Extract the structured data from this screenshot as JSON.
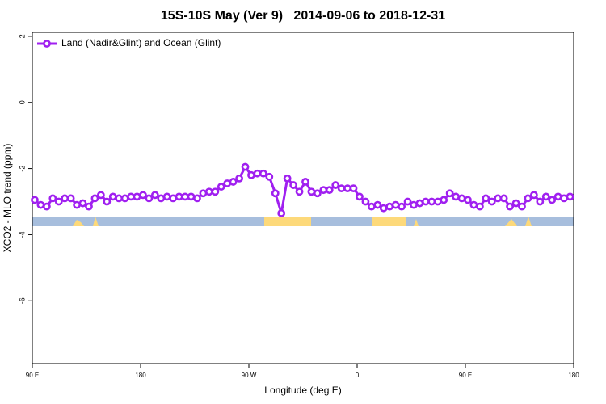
{
  "chart_data": {
    "type": "line",
    "title": "15S-10S May (Ver 9)   2014-09-06 to 2018-12-31",
    "xlabel": "Longitude (deg E)",
    "ylabel": "XCO2 - MLO trend (ppm)",
    "xlim": [
      90,
      540
    ],
    "xticks": [
      {
        "value": 90,
        "label": "90 E"
      },
      180,
      {
        "value": 270,
        "label": "90 W"
      },
      {
        "value": 360,
        "label": "0"
      },
      {
        "value": 450,
        "label": "90 E"
      },
      {
        "value": 540,
        "label": "180"
      }
    ],
    "ylim": [
      -7.9,
      2.12
    ],
    "yticks": [
      -6,
      -4,
      -2,
      0,
      2
    ],
    "legend": "top-left",
    "x": [
      92,
      97,
      102,
      107,
      112,
      117,
      122,
      127,
      132,
      137,
      142,
      147,
      152,
      157,
      162,
      167,
      172,
      177,
      182,
      187,
      192,
      197,
      202,
      207,
      212,
      217,
      222,
      227,
      232,
      237,
      242,
      247,
      252,
      257,
      262,
      267,
      272,
      277,
      282,
      287,
      292,
      297,
      302,
      307,
      312,
      317,
      322,
      327,
      332,
      337,
      342,
      347,
      352,
      357,
      362,
      367,
      372,
      377,
      382,
      387,
      392,
      397,
      402,
      407,
      412,
      417,
      422,
      427,
      432,
      437,
      442,
      447,
      452,
      457,
      462,
      467,
      472,
      477,
      482,
      487,
      492,
      497,
      502,
      507,
      512,
      517,
      522,
      527,
      532,
      537
    ],
    "series": [
      {
        "name": "Land (Nadir&Glint) and Ocean (Glint)",
        "color": "#a020f0",
        "values": [
          -2.95,
          -3.1,
          -3.15,
          -2.9,
          -3.0,
          -2.9,
          -2.9,
          -3.1,
          -3.05,
          -3.15,
          -2.9,
          -2.8,
          -3.0,
          -2.85,
          -2.9,
          -2.9,
          -2.85,
          -2.85,
          -2.8,
          -2.9,
          -2.8,
          -2.9,
          -2.85,
          -2.9,
          -2.85,
          -2.85,
          -2.85,
          -2.9,
          -2.75,
          -2.7,
          -2.7,
          -2.55,
          -2.45,
          -2.4,
          -2.3,
          -1.95,
          -2.2,
          -2.15,
          -2.15,
          -2.25,
          -2.75,
          -3.35,
          -2.3,
          -2.5,
          -2.7,
          -2.4,
          -2.7,
          -2.75,
          -2.65,
          -2.65,
          -2.5,
          -2.6,
          -2.6,
          -2.6,
          -2.85,
          -3.0,
          -3.15,
          -3.1,
          -3.2,
          -3.15,
          -3.1,
          -3.15,
          -3.0,
          -3.1,
          -3.05,
          -3.0,
          -3.0,
          -3.0,
          -2.95,
          -2.75,
          -2.85,
          -2.9,
          -2.95,
          -3.1,
          -3.15,
          -2.9,
          -3.0,
          -2.9,
          -2.9,
          -3.15,
          -3.05,
          -3.15,
          -2.9,
          -2.8,
          -3.0,
          -2.85,
          -2.95,
          -2.85,
          -2.9,
          -2.85
        ]
      }
    ]
  }
}
